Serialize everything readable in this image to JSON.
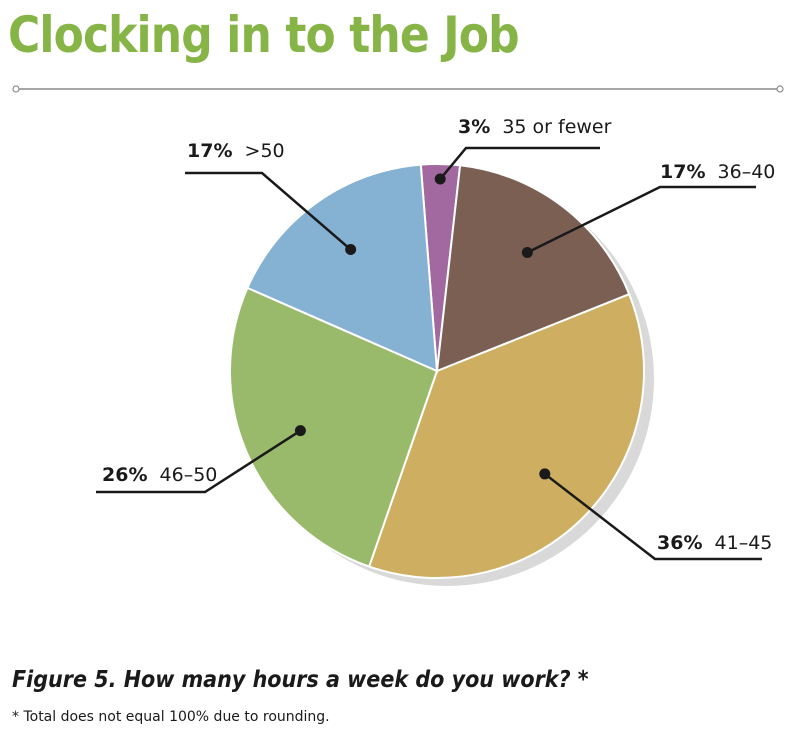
{
  "header": {
    "title": "Clocking in to the Job"
  },
  "chart_data": {
    "type": "pie",
    "title": "Clocking in to the Job",
    "slices": [
      {
        "label": "35 or fewer",
        "pct_label": "3%",
        "value": 3,
        "color": "#a1699f"
      },
      {
        "label": "36–40",
        "pct_label": "17%",
        "value": 17,
        "color": "#7a5f52"
      },
      {
        "label": "41–45",
        "pct_label": "36%",
        "value": 36,
        "color": "#ceae60"
      },
      {
        "label": "46–50",
        "pct_label": "26%",
        "value": 26,
        "color": "#9aba6b"
      },
      {
        "label": ">50",
        "pct_label": "17%",
        "value": 17,
        "color": "#85b1d3"
      }
    ]
  },
  "caption": "Figure 5.  How many hours a week do you work? *",
  "footnote": "* Total does not equal 100% due to rounding.",
  "colors": {
    "title": "#86b446",
    "rule": "#8a8a8a"
  }
}
